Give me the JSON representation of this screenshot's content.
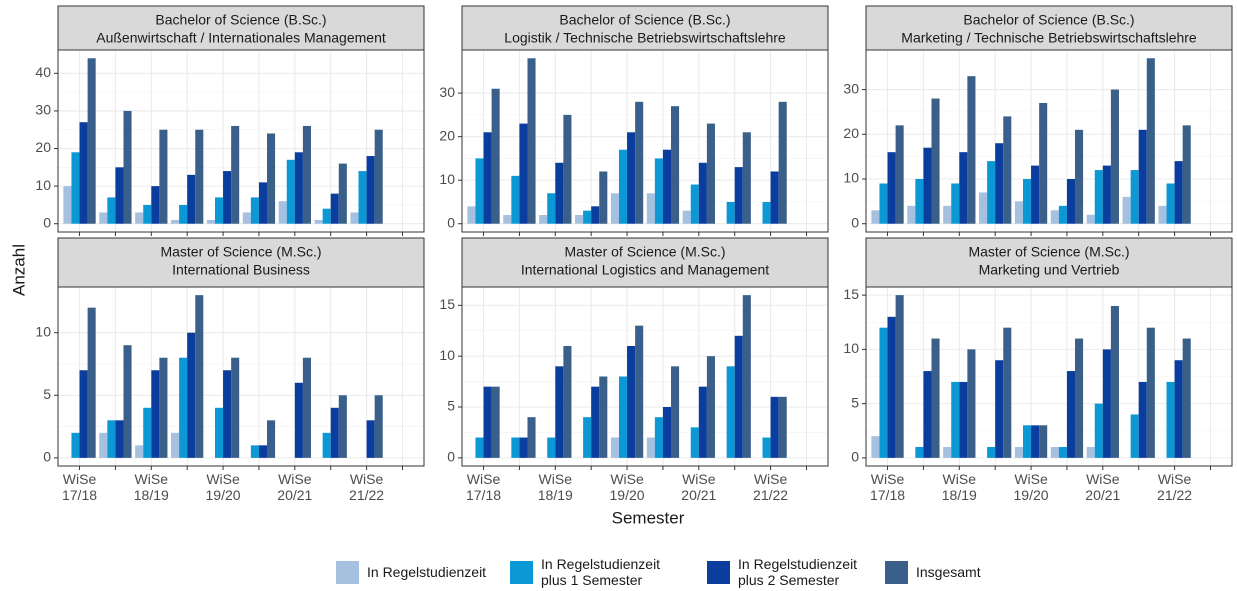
{
  "chart_data": [
    {
      "type": "bar",
      "title": "Bachelor of Science (B.Sc.)",
      "subtitle": "Außenwirtschaft / Internationales Management",
      "ylim": [
        -2.2,
        46.2
      ],
      "yticks": [
        0,
        10,
        20,
        30,
        40
      ],
      "series": [
        {
          "values": [
            10,
            3,
            3,
            1,
            1,
            3,
            6,
            1,
            3,
            null
          ]
        },
        {
          "values": [
            19,
            7,
            5,
            5,
            7,
            7,
            17,
            4,
            14,
            null
          ]
        },
        {
          "values": [
            27,
            15,
            10,
            13,
            14,
            11,
            19,
            8,
            18,
            null
          ]
        },
        {
          "values": [
            44,
            30,
            25,
            25,
            26,
            24,
            26,
            16,
            25,
            null
          ]
        }
      ]
    },
    {
      "type": "bar",
      "title": "Bachelor of Science (B.Sc.)",
      "subtitle": "Logistik / Technische Betriebswirtschaftslehre",
      "ylim": [
        -1.9,
        39.9
      ],
      "yticks": [
        0,
        10,
        20,
        30
      ],
      "series": [
        {
          "values": [
            4,
            2,
            2,
            2,
            7,
            7,
            3,
            null,
            null,
            null
          ]
        },
        {
          "values": [
            15,
            11,
            7,
            3,
            17,
            15,
            9,
            5,
            5,
            null
          ]
        },
        {
          "values": [
            21,
            23,
            14,
            4,
            21,
            17,
            14,
            13,
            12,
            null
          ]
        },
        {
          "values": [
            31,
            38,
            25,
            12,
            28,
            27,
            23,
            21,
            28,
            null
          ]
        }
      ]
    },
    {
      "type": "bar",
      "title": "Bachelor of Science (B.Sc.)",
      "subtitle": "Marketing / Technische Betriebswirtschaftslehre",
      "ylim": [
        -1.85,
        38.85
      ],
      "yticks": [
        0,
        10,
        20,
        30
      ],
      "series": [
        {
          "values": [
            3,
            4,
            4,
            7,
            5,
            3,
            2,
            6,
            4,
            null
          ]
        },
        {
          "values": [
            9,
            10,
            9,
            14,
            10,
            4,
            12,
            12,
            9,
            null
          ]
        },
        {
          "values": [
            16,
            17,
            16,
            18,
            13,
            10,
            13,
            21,
            14,
            null
          ]
        },
        {
          "values": [
            22,
            28,
            33,
            24,
            27,
            21,
            30,
            37,
            22,
            null
          ]
        }
      ]
    },
    {
      "type": "bar",
      "title": "Master of Science (M.Sc.)",
      "subtitle": "International Business",
      "ylim": [
        -0.65,
        13.65
      ],
      "yticks": [
        0,
        5,
        10
      ],
      "series": [
        {
          "values": [
            null,
            2,
            1,
            2,
            null,
            null,
            null,
            null,
            null,
            null
          ]
        },
        {
          "values": [
            2,
            3,
            4,
            8,
            4,
            1,
            null,
            2,
            null,
            null
          ]
        },
        {
          "values": [
            7,
            3,
            7,
            10,
            7,
            1,
            6,
            4,
            3,
            null
          ]
        },
        {
          "values": [
            12,
            9,
            8,
            13,
            8,
            3,
            8,
            5,
            5,
            null
          ]
        }
      ]
    },
    {
      "type": "bar",
      "title": "Master of Science (M.Sc.)",
      "subtitle": "International Logistics and Management",
      "ylim": [
        -0.8,
        16.8
      ],
      "yticks": [
        0,
        5,
        10,
        15
      ],
      "series": [
        {
          "values": [
            null,
            null,
            null,
            null,
            2,
            2,
            null,
            null,
            null,
            null
          ]
        },
        {
          "values": [
            2,
            2,
            2,
            4,
            8,
            4,
            3,
            9,
            2,
            null
          ]
        },
        {
          "values": [
            7,
            2,
            9,
            7,
            11,
            5,
            7,
            12,
            6,
            null
          ]
        },
        {
          "values": [
            7,
            4,
            11,
            8,
            13,
            9,
            10,
            16,
            6,
            null
          ]
        }
      ]
    },
    {
      "type": "bar",
      "title": "Master of Science (M.Sc.)",
      "subtitle": "Marketing und Vertrieb",
      "ylim": [
        -0.75,
        15.75
      ],
      "yticks": [
        0,
        5,
        10,
        15
      ],
      "series": [
        {
          "values": [
            2,
            null,
            1,
            null,
            1,
            1,
            1,
            null,
            null,
            null
          ]
        },
        {
          "values": [
            12,
            1,
            7,
            1,
            3,
            1,
            5,
            4,
            7,
            null
          ]
        },
        {
          "values": [
            13,
            8,
            7,
            9,
            3,
            8,
            10,
            7,
            9,
            null
          ]
        },
        {
          "values": [
            15,
            11,
            10,
            12,
            3,
            11,
            14,
            12,
            11,
            null
          ]
        }
      ]
    }
  ],
  "categories": [
    "WiSe 17/18",
    null,
    "WiSe 18/19",
    null,
    "WiSe 19/20",
    null,
    "WiSe 20/21",
    null,
    "WiSe 21/22",
    null
  ],
  "x_label": "Semester",
  "y_label": "Anzahl",
  "legend": [
    {
      "name": "In Regelstudienzeit",
      "color": "#a6c0e0"
    },
    {
      "name": "In Regelstudienzeit plus 1 Semester",
      "color": "#0b98d5"
    },
    {
      "name": "In Regelstudienzeit plus 2 Semester",
      "color": "#0a3d9e"
    },
    {
      "name": "Insgesamt",
      "color": "#3a6089"
    }
  ]
}
